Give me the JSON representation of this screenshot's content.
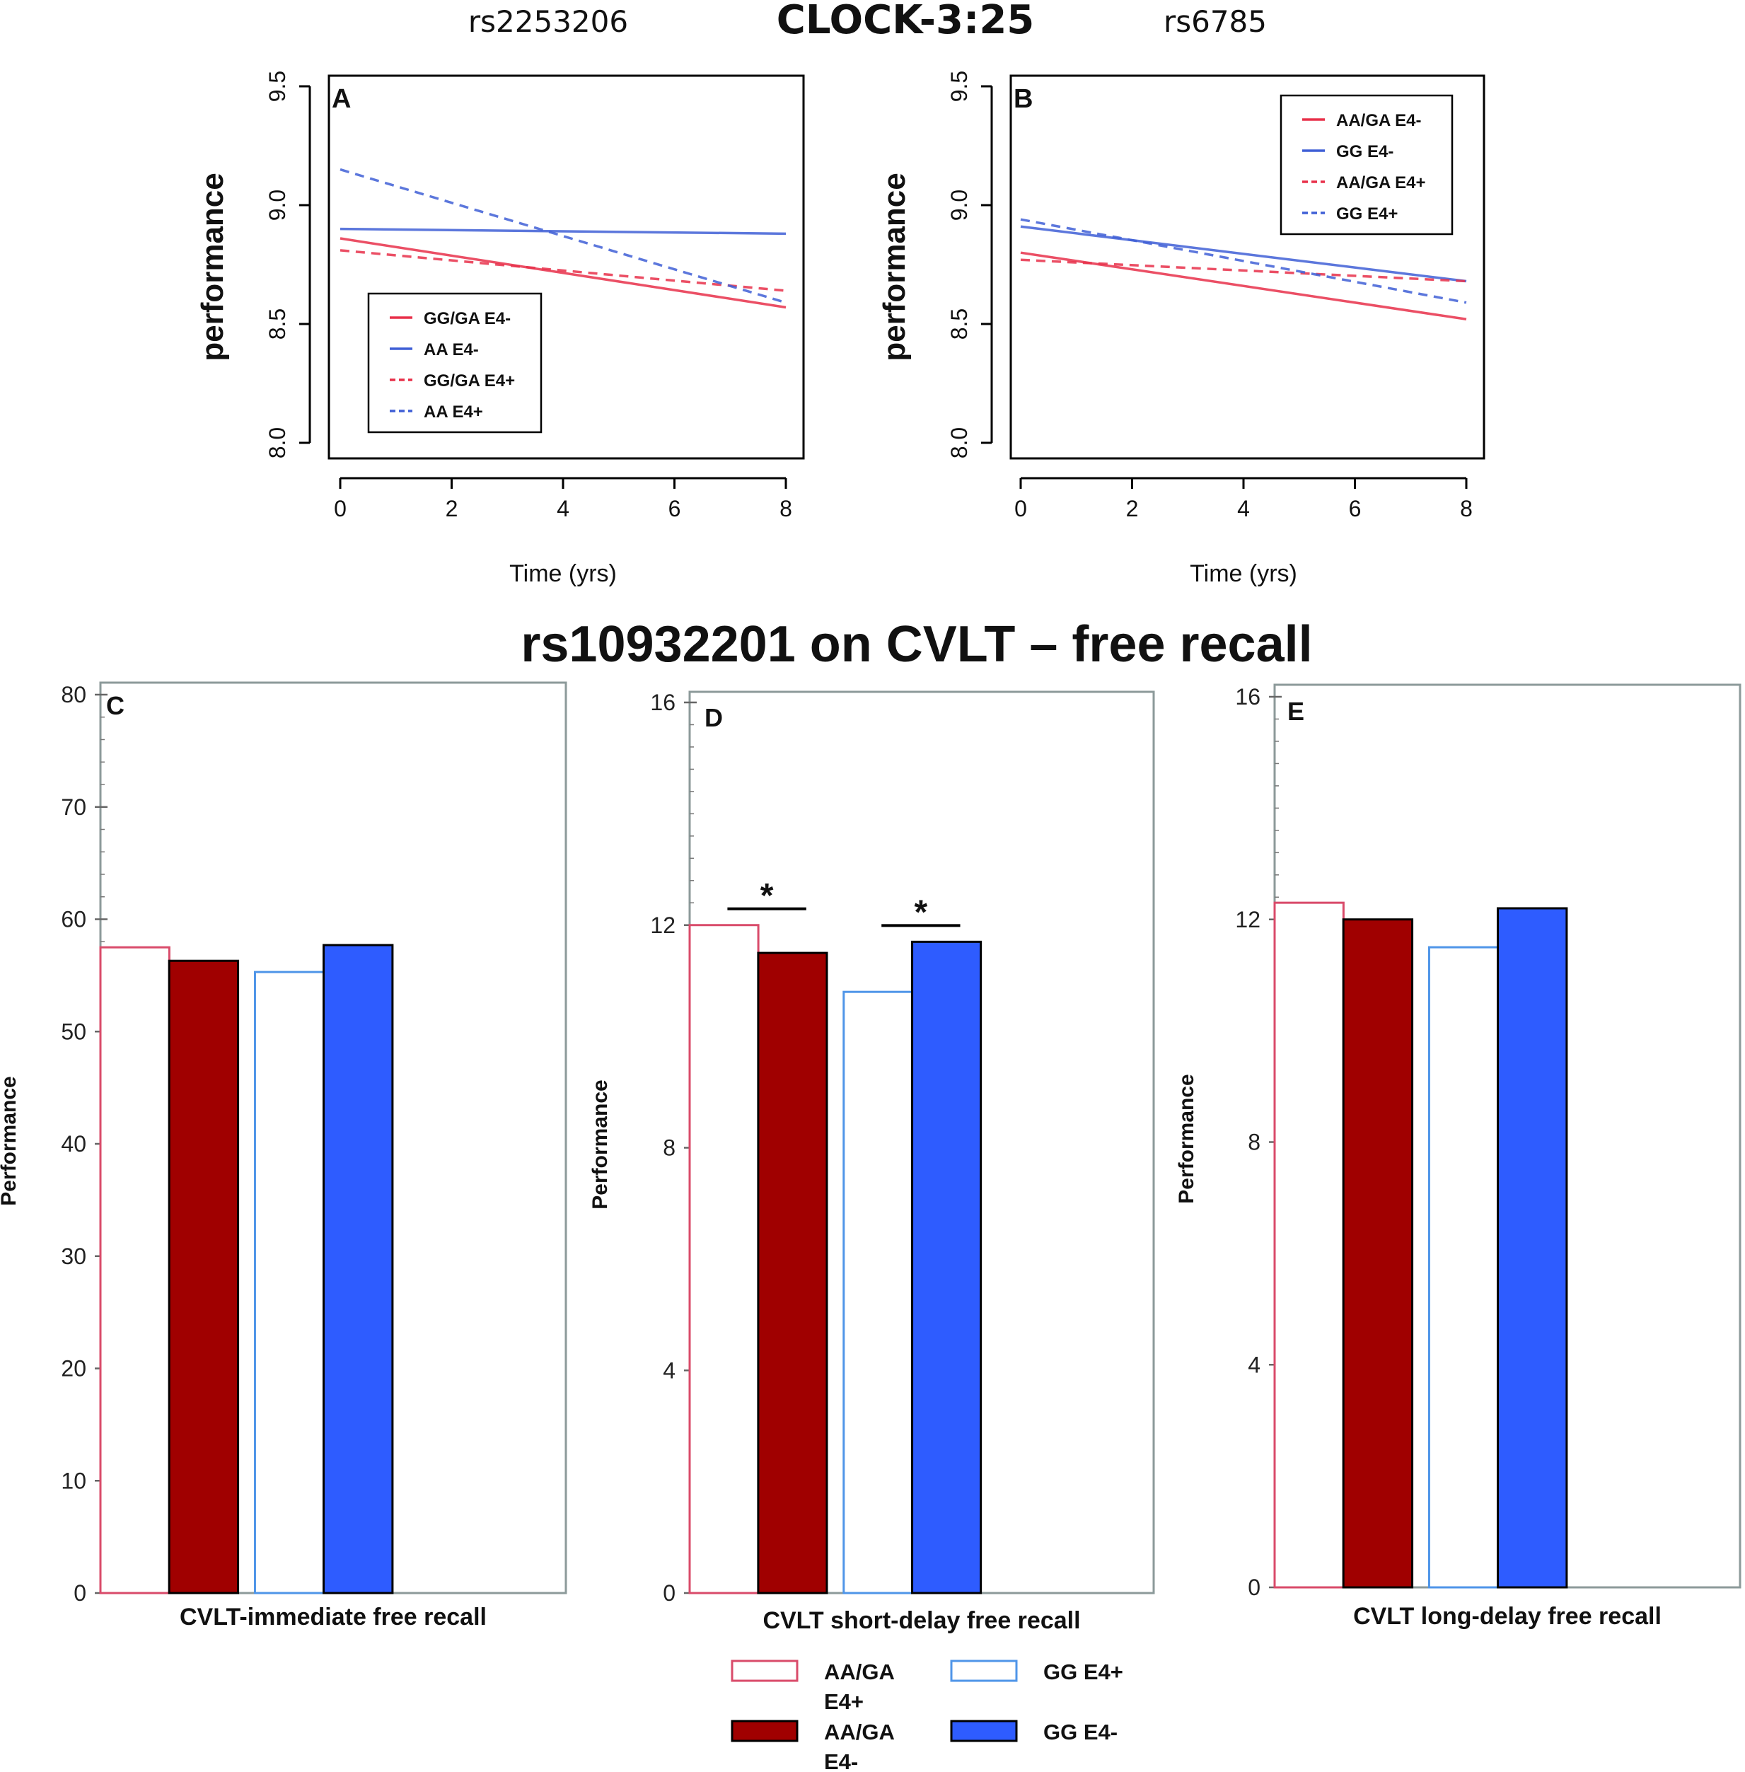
{
  "header": {
    "left_snp": "rs2253206",
    "title": "CLOCK-3:25",
    "right_snp": "rs6785"
  },
  "bottom_title": "rs10932201 on CVLT – free recall",
  "colors": {
    "red": "#e8304a",
    "blue": "#3f5fd6",
    "dark_red": "#a00000",
    "bar_blue": "#2e5cff",
    "red_outline": "#d94b6a",
    "blue_outline": "#4f95e8",
    "frame": "#8c9a9a"
  },
  "chart_data": [
    {
      "panel": "A",
      "type": "line",
      "xlabel": "Time (yrs)",
      "ylabel": "performance",
      "xlim": [
        0,
        8
      ],
      "ylim": [
        8.0,
        9.5
      ],
      "xticks": [
        0,
        2,
        4,
        6,
        8
      ],
      "yticks": [
        8.0,
        8.5,
        9.0,
        9.5
      ],
      "series": [
        {
          "name": "GG/GA E4-",
          "color": "red",
          "dash": false,
          "x": [
            0,
            8
          ],
          "y": [
            8.86,
            8.57
          ]
        },
        {
          "name": "AA E4-",
          "color": "blue",
          "dash": false,
          "x": [
            0,
            8
          ],
          "y": [
            8.9,
            8.88
          ]
        },
        {
          "name": "GG/GA E4+",
          "color": "red",
          "dash": true,
          "x": [
            0,
            8
          ],
          "y": [
            8.81,
            8.64
          ]
        },
        {
          "name": "AA E4+",
          "color": "blue",
          "dash": true,
          "x": [
            0,
            8
          ],
          "y": [
            9.15,
            8.59
          ]
        }
      ]
    },
    {
      "panel": "B",
      "type": "line",
      "xlabel": "Time (yrs)",
      "ylabel": "performance",
      "xlim": [
        0,
        8
      ],
      "ylim": [
        8.0,
        9.5
      ],
      "xticks": [
        0,
        2,
        4,
        6,
        8
      ],
      "yticks": [
        8.0,
        8.5,
        9.0,
        9.5
      ],
      "series": [
        {
          "name": "AA/GA E4-",
          "color": "red",
          "dash": false,
          "x": [
            0,
            8
          ],
          "y": [
            8.8,
            8.52
          ]
        },
        {
          "name": "GG E4-",
          "color": "blue",
          "dash": false,
          "x": [
            0,
            8
          ],
          "y": [
            8.91,
            8.68
          ]
        },
        {
          "name": "AA/GA E4+",
          "color": "red",
          "dash": true,
          "x": [
            0,
            8
          ],
          "y": [
            8.77,
            8.68
          ]
        },
        {
          "name": "GG E4+",
          "color": "blue",
          "dash": true,
          "x": [
            0,
            8
          ],
          "y": [
            8.94,
            8.59
          ]
        }
      ]
    },
    {
      "panel": "C",
      "type": "bar",
      "xlabel": "CVLT-immediate free recall",
      "ylabel": "Performance",
      "ylim": [
        0,
        80
      ],
      "yticks": [
        0,
        10,
        20,
        30,
        40,
        50,
        60,
        70,
        80
      ],
      "categories": [
        "AA/GA E4+",
        "AA/GA E4-",
        "GG E4+",
        "GG E4-"
      ],
      "values": [
        57.5,
        56.3,
        55.3,
        57.7
      ],
      "significance": []
    },
    {
      "panel": "D",
      "type": "bar",
      "xlabel": "CVLT short-delay free recall",
      "ylabel": "Performance",
      "ylim": [
        0,
        16
      ],
      "yticks": [
        0,
        4,
        8,
        12,
        16
      ],
      "categories": [
        "AA/GA E4+",
        "AA/GA E4-",
        "GG E4+",
        "GG E4-"
      ],
      "values": [
        12.0,
        11.5,
        10.8,
        11.7
      ],
      "significance": [
        {
          "pair": [
            0,
            1
          ],
          "label": "*"
        },
        {
          "pair": [
            2,
            3
          ],
          "label": "*"
        }
      ]
    },
    {
      "panel": "E",
      "type": "bar",
      "xlabel": "CVLT long-delay free recall",
      "ylabel": "Performance",
      "ylim": [
        0,
        16
      ],
      "yticks": [
        0,
        4,
        8,
        12,
        16
      ],
      "categories": [
        "AA/GA E4+",
        "AA/GA E4-",
        "GG E4+",
        "GG E4-"
      ],
      "values": [
        12.3,
        12.0,
        11.5,
        12.2
      ],
      "significance": []
    }
  ],
  "bar_legend": [
    {
      "label_line1": "AA/GA",
      "label_line2": "E4+",
      "style": "red_outline"
    },
    {
      "label_line1": "GG E4+",
      "label_line2": "",
      "style": "blue_outline"
    },
    {
      "label_line1": "AA/GA",
      "label_line2": "E4-",
      "style": "dark_red"
    },
    {
      "label_line1": "GG E4-",
      "label_line2": "",
      "style": "bar_blue"
    }
  ]
}
